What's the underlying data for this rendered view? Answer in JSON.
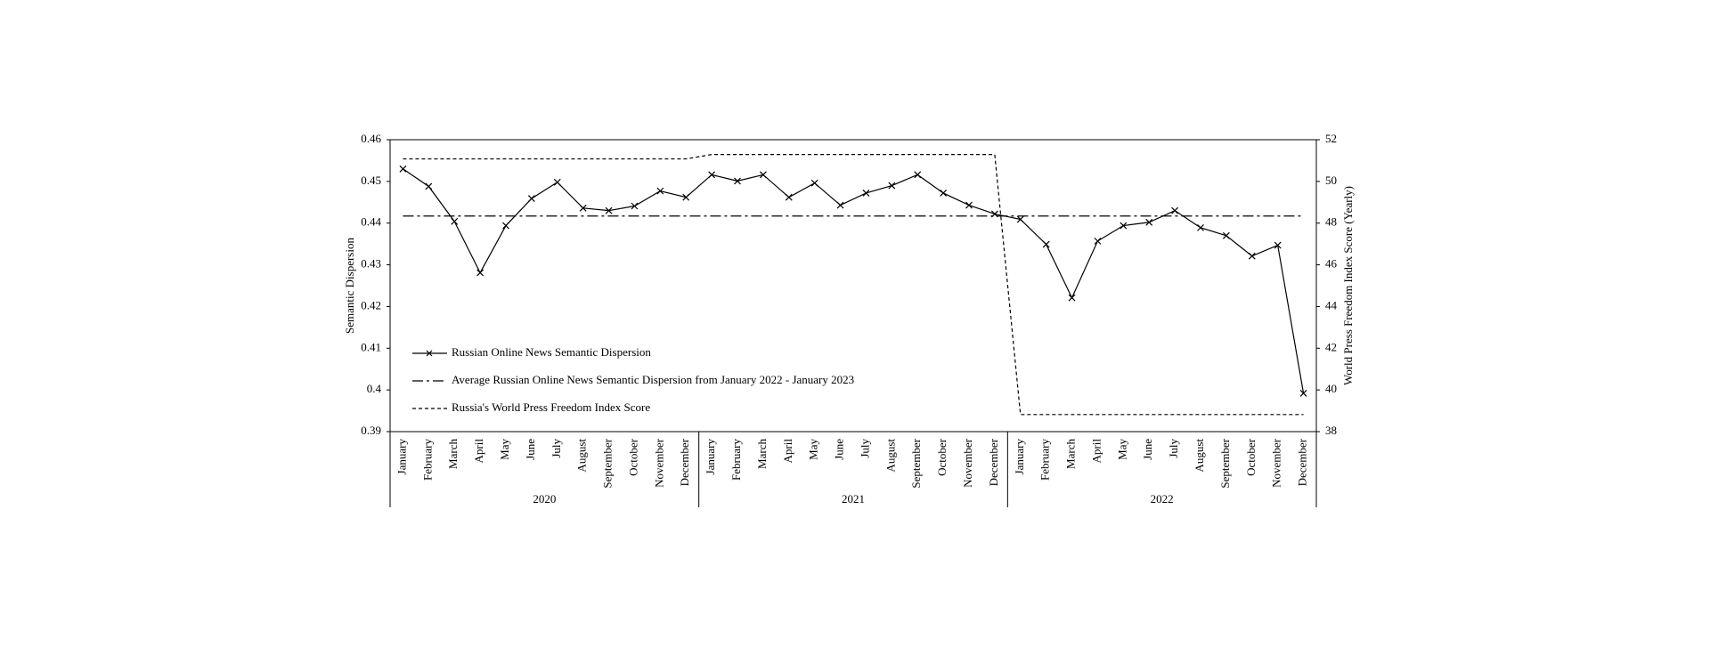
{
  "chart_data": {
    "type": "line",
    "y_label": "Semantic Dispersion",
    "y2_label": "World Press Freedom Index Score (Yearly)",
    "categories": [
      "January",
      "February",
      "March",
      "April",
      "May",
      "June",
      "July",
      "August",
      "September",
      "October",
      "November",
      "December",
      "January",
      "February",
      "March",
      "April",
      "May",
      "June",
      "July",
      "August",
      "September",
      "October",
      "November",
      "December",
      "January",
      "February",
      "March",
      "April",
      "May",
      "June",
      "July",
      "August",
      "September",
      "October",
      "November",
      "December"
    ],
    "year_groups": [
      "2020",
      "2021",
      "2022"
    ],
    "series": [
      {
        "name": "Russian Online News Semantic Dispersion",
        "color": "#000000",
        "dash": "solid",
        "marker": "x",
        "values": [
          0.453,
          0.4488,
          0.4404,
          0.4281,
          0.4394,
          0.4459,
          0.4498,
          0.4436,
          0.443,
          0.4441,
          0.4477,
          0.4462,
          0.4516,
          0.4501,
          0.4516,
          0.4462,
          0.4496,
          0.4443,
          0.4472,
          0.449,
          0.4516,
          0.4472,
          0.4443,
          0.4422,
          0.4409,
          0.4349,
          0.4221,
          0.4357,
          0.4394,
          0.4402,
          0.443,
          0.4389,
          0.437,
          0.4321,
          0.4347,
          0.3992
        ]
      },
      {
        "name": "Average Russian Online News Semantic Dispersion from January 2022 - January 2023",
        "color": "#000000",
        "dash": "dashdot",
        "values": [
          0.4417,
          0.4417,
          0.4417,
          0.4417,
          0.4417,
          0.4417,
          0.4417,
          0.4417,
          0.4417,
          0.4417,
          0.4417,
          0.4417,
          0.4417,
          0.4417,
          0.4417,
          0.4417,
          0.4417,
          0.4417,
          0.4417,
          0.4417,
          0.4417,
          0.4417,
          0.4417,
          0.4417,
          0.4417,
          0.4417,
          0.4417,
          0.4417,
          0.4417,
          0.4417,
          0.4417,
          0.4417,
          0.4417,
          0.4417,
          0.4417,
          0.4417
        ]
      },
      {
        "name": "Russia's World Press Freedom Index Score",
        "color": "#000000",
        "dash": "dash",
        "axis": "y2",
        "values": [
          51.08,
          51.08,
          51.08,
          51.08,
          51.08,
          51.08,
          51.08,
          51.08,
          51.08,
          51.08,
          51.08,
          51.08,
          51.29,
          51.29,
          51.29,
          51.29,
          51.29,
          51.29,
          51.29,
          51.29,
          51.29,
          51.29,
          51.29,
          51.29,
          38.82,
          38.82,
          38.82,
          38.82,
          38.82,
          38.82,
          38.82,
          38.82,
          38.82,
          38.82,
          38.82,
          38.82
        ]
      }
    ],
    "ylim": [
      0.39,
      0.46
    ],
    "yticks": [
      0.39,
      0.4,
      0.41,
      0.42,
      0.43,
      0.44,
      0.45,
      0.46
    ],
    "y2lim": [
      38,
      52
    ],
    "y2ticks": [
      38,
      40,
      42,
      44,
      46,
      48,
      50,
      52
    ],
    "grid": false,
    "legend": "lower left"
  }
}
